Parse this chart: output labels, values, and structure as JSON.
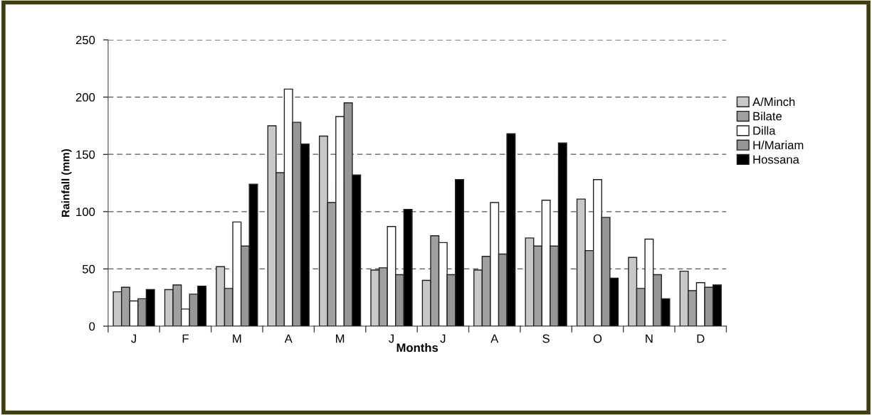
{
  "chart_data": {
    "type": "bar",
    "xlabel": "Months",
    "ylabel": "Rainfall (mm)",
    "categories": [
      "J",
      "F",
      "M",
      "A",
      "M",
      "J",
      "J",
      "A",
      "S",
      "O",
      "N",
      "D"
    ],
    "series": [
      {
        "name": "A/Minch",
        "color": "#c8c8c8",
        "values": [
          30,
          32,
          52,
          175,
          166,
          49,
          40,
          49,
          77,
          111,
          60,
          48
        ]
      },
      {
        "name": "Bilate",
        "color": "#a0a0a0",
        "values": [
          34,
          36,
          33,
          134,
          108,
          51,
          79,
          61,
          70,
          66,
          33,
          31
        ]
      },
      {
        "name": "Dilla",
        "color": "#ffffff",
        "values": [
          22,
          15,
          91,
          207,
          183,
          87,
          73,
          108,
          110,
          128,
          76,
          38
        ]
      },
      {
        "name": "H/Mariam",
        "color": "#969696",
        "values": [
          24,
          28,
          70,
          178,
          195,
          45,
          45,
          63,
          70,
          95,
          45,
          34
        ]
      },
      {
        "name": "Hossana",
        "color": "#000000",
        "values": [
          32,
          35,
          124,
          159,
          132,
          102,
          128,
          168,
          160,
          42,
          24,
          36
        ]
      }
    ],
    "ylim": [
      0,
      250
    ],
    "yticks": [
      0,
      50,
      100,
      150,
      200,
      250
    ],
    "grid": "y",
    "legend": "right"
  }
}
